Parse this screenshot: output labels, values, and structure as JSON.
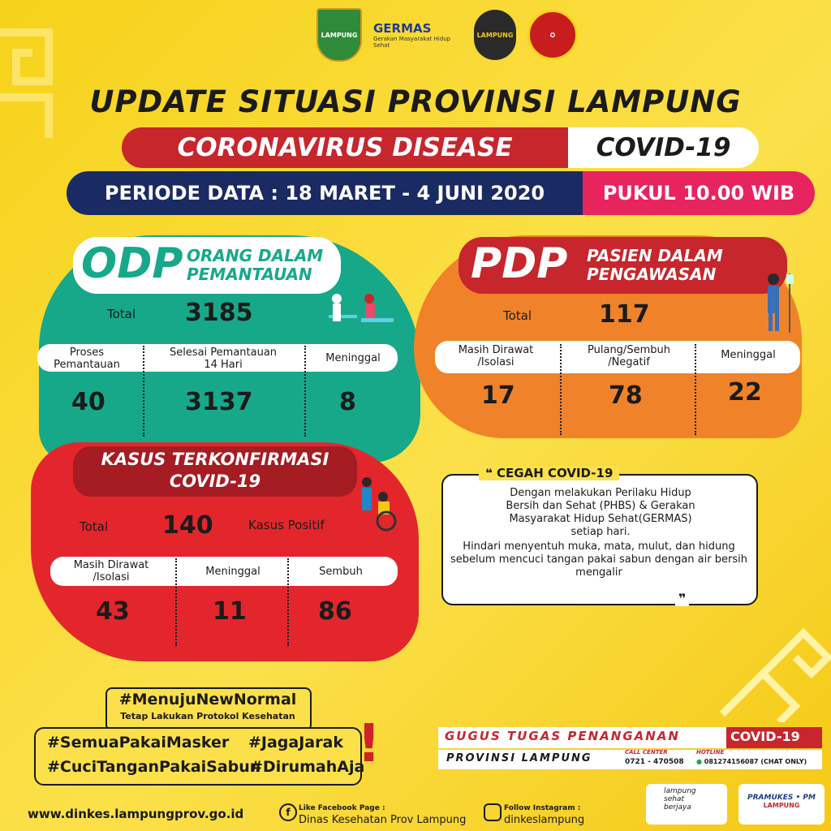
{
  "logos": {
    "lampung": "LAMPUNG",
    "germas": "GERMAS",
    "germas_sub": "Gerakan Masyarakat Hidup Sehat",
    "polda": "LAMPUNG"
  },
  "header": {
    "title": "UPDATE SITUASI PROVINSI LAMPUNG",
    "disease": "CORONAVIRUS DISEASE",
    "covid": "COVID-19",
    "periode": "PERIODE DATA : 18 MARET - 4 JUNI 2020",
    "pukul": "PUKUL 10.00 WIB"
  },
  "odp": {
    "abbr": "ODP",
    "full_line1": "ORANG DALAM",
    "full_line2": "PEMANTAUAN",
    "total_label": "Total",
    "total": "3185",
    "col1_line1": "Proses",
    "col1_line2": "Pemantauan",
    "col2_line1": "Selesai Pemantauan",
    "col2_line2": "14 Hari",
    "col3": "Meninggal",
    "val1": "40",
    "val2": "3137",
    "val3": "8"
  },
  "pdp": {
    "abbr": "PDP",
    "full_line1": "PASIEN DALAM",
    "full_line2": "PENGAWASAN",
    "total_label": "Total",
    "total": "117",
    "col1_line1": "Masih Dirawat",
    "col1_line2": "/Isolasi",
    "col2_line1": "Pulang/Sembuh",
    "col2_line2": "/Negatif",
    "col3": "Meninggal",
    "val1": "17",
    "val2": "78",
    "val3": "22"
  },
  "kasus": {
    "title_line1": "KASUS TERKONFIRMASI",
    "title_line2": "COVID-19",
    "total_label": "Total",
    "total": "140",
    "positif_label": "Kasus Positif",
    "col1_line1": "Masih Dirawat",
    "col1_line2": "/Isolasi",
    "col2": "Meninggal",
    "col3": "Sembuh",
    "val1": "43",
    "val2": "11",
    "val3": "86"
  },
  "cegah": {
    "open_quote": "❝",
    "title": "CEGAH COVID-19",
    "para1": "Dengan melakukan Perilaku Hidup Bersih dan Sehat (PHBS) & Gerakan Masyarakat Hidup Sehat(GERMAS) setiap hari.",
    "para2": "Hindari menyentuh muka, mata, mulut, dan hidung sebelum mencuci tangan pakai sabun dengan air bersih mengalir",
    "close_quote": "❞"
  },
  "hashtags": {
    "main": "#MenujuNewNormal",
    "sub": "Tetap Lakukan Protokol Kesehatan",
    "h1": "#SemuaPakaiMasker",
    "h2": "#JagaJarak",
    "h3": "#CuciTanganPakaiSabun",
    "h4": "#DirumahAja",
    "exclaim": "!"
  },
  "gugus": {
    "line1": "GUGUS TUGAS PENANGANAN",
    "covid": "COVID-19",
    "line2": "PROVINSI LAMPUNG",
    "call_label": "CALL CENTER",
    "call": "0721 - 470508",
    "hotline_label": "HOTLINE",
    "hotline": "081274156087 (CHAT ONLY)"
  },
  "footer": {
    "website": "www.dinkes.lampungprov.go.id",
    "fb_label": "Like Facebook Page :",
    "fb": "Dinas Kesehatan Prov Lampung",
    "ig_label": "Follow Instagram :",
    "ig": "dinkeslampung",
    "badge1_line1": "lampung",
    "badge1_line2": "sehat",
    "badge1_line3": "berjaya",
    "badge2": "PRAMUKES • PM",
    "badge2_sub": "LAMPUNG"
  },
  "colors": {
    "odp": "#17a88a",
    "pdp": "#f0832a",
    "kasus": "#e3262c",
    "navy": "#1a2b63",
    "pink": "#e8245f",
    "yellow": "#f7d21a"
  }
}
